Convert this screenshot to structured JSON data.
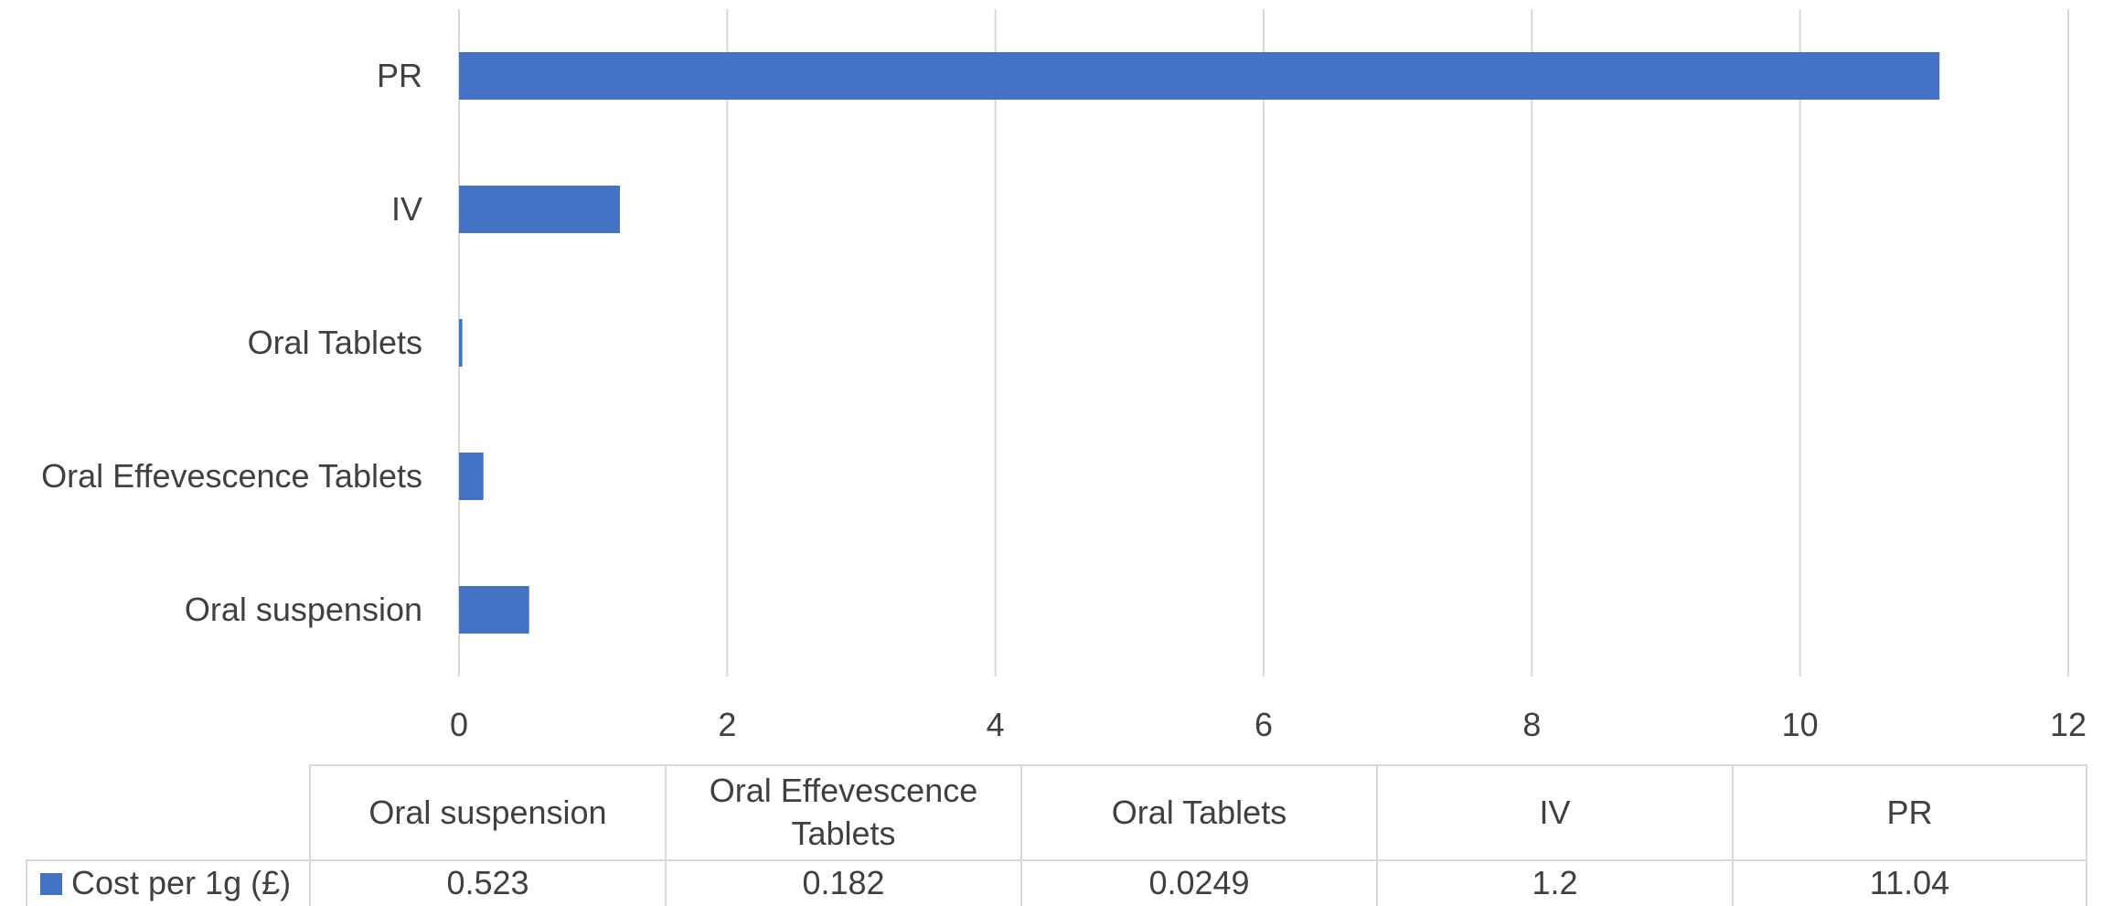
{
  "chart_data": {
    "type": "bar",
    "orientation": "horizontal",
    "categories": [
      "Oral suspension",
      "Oral Effevescence Tablets",
      "Oral Tablets",
      "IV",
      "PR"
    ],
    "series": [
      {
        "name": "Cost per 1g (£)",
        "values": [
          0.523,
          0.182,
          0.0249,
          1.2,
          11.04
        ],
        "color": "#4472C4"
      }
    ],
    "xlim": [
      0,
      12
    ],
    "x_ticks": [
      0,
      2,
      4,
      6,
      8,
      10,
      12
    ],
    "x_tick_labels": [
      "0",
      "2",
      "4",
      "6",
      "8",
      "10",
      "12"
    ],
    "grid": true,
    "legend": "data-table",
    "data_table": {
      "headers": [
        "Oral suspension",
        "Oral Effevescence Tablets",
        "Oral Tablets",
        "IV",
        "PR"
      ],
      "row_label": "Cost per 1g (£)",
      "row_values": [
        "0.523",
        "0.182",
        "0.0249",
        "1.2",
        "11.04"
      ]
    }
  }
}
